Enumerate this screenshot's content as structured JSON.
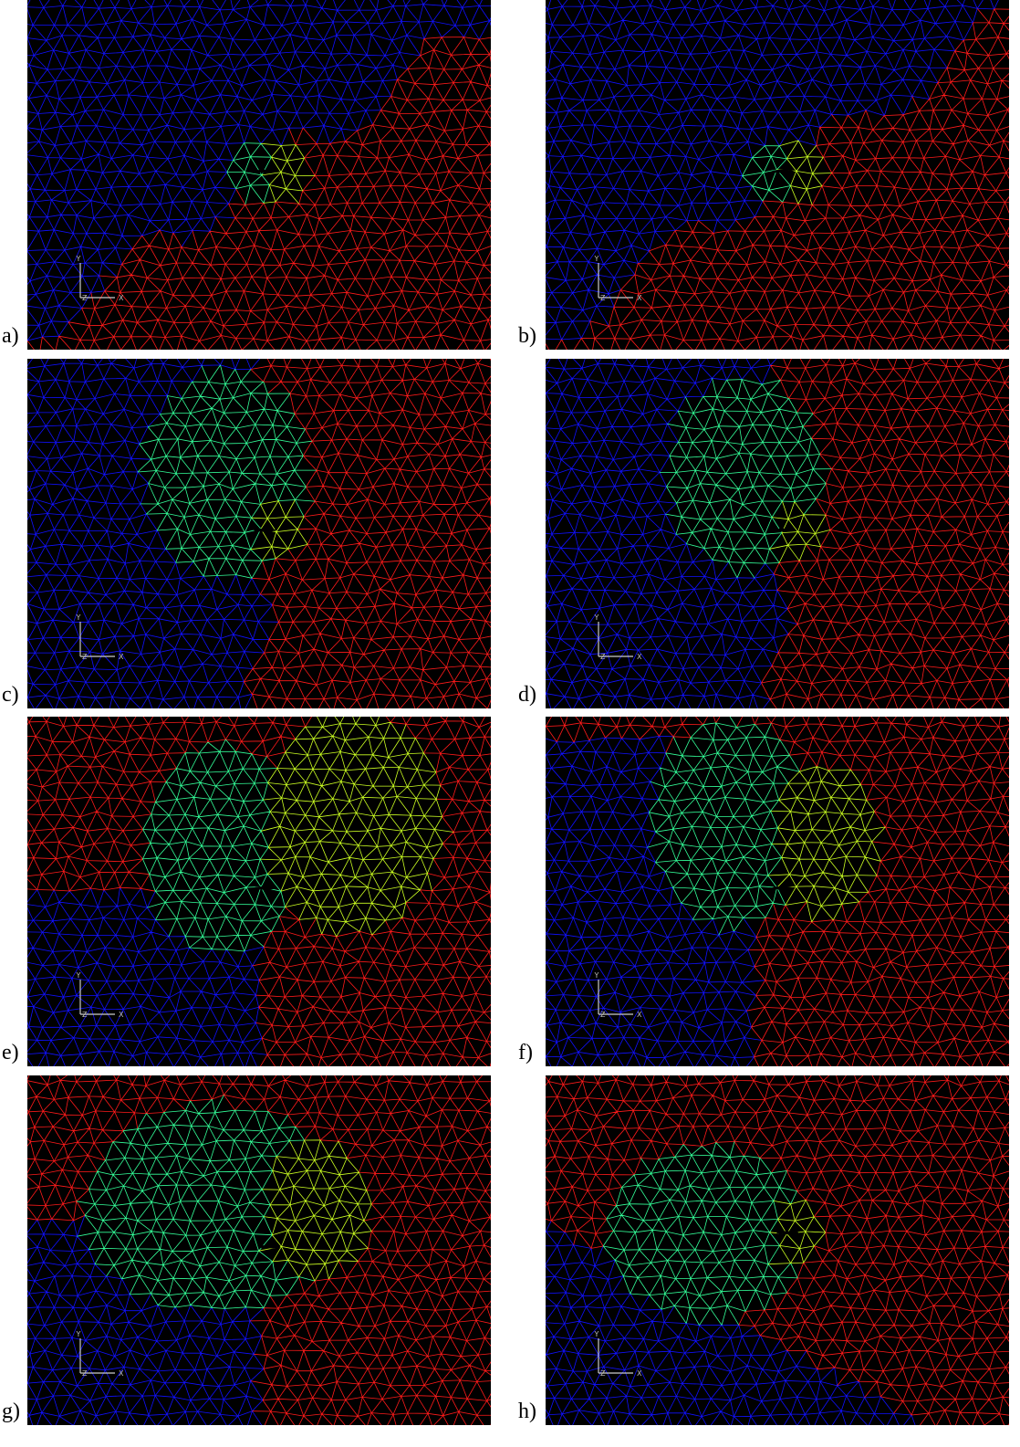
{
  "panels": [
    {
      "label": "a)",
      "triad": [
        "Y",
        "Z",
        "X"
      ]
    },
    {
      "label": "b)",
      "triad": [
        "Y",
        "Z",
        "X"
      ]
    },
    {
      "label": "c)",
      "triad": [
        "Y",
        "Z",
        "X"
      ]
    },
    {
      "label": "d)",
      "triad": [
        "Y",
        "Z",
        "X"
      ]
    },
    {
      "label": "e)",
      "triad": [
        "Y",
        "Z",
        "X"
      ]
    },
    {
      "label": "f)",
      "triad": [
        "Y",
        "Z",
        "X"
      ]
    },
    {
      "label": "g)",
      "triad": [
        "Y",
        "Z",
        "X"
      ]
    },
    {
      "label": "h)",
      "triad": [
        "Y",
        "Z",
        "X"
      ]
    }
  ]
}
